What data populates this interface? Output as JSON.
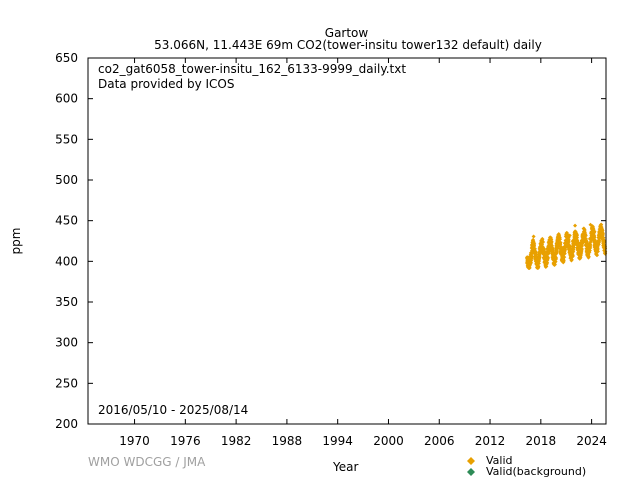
{
  "header": {
    "station": "Gartow",
    "subtitle": "53.066N, 11.443E 69m    CO2(tower-insitu tower132 default) daily"
  },
  "plot_info": {
    "filename": "co2_gat6058_tower-insitu_162_6133-9999_daily.txt",
    "provider": "Data provided by ICOS",
    "date_range": "2016/05/10 - 2025/08/14"
  },
  "credit": "WMO WDCGG / JMA",
  "chart_data": {
    "type": "scatter",
    "xlabel": "Year",
    "ylabel": "ppm",
    "xlim": [
      1964.5,
      2025.7
    ],
    "ylim": [
      200,
      650
    ],
    "xticks": [
      1970,
      1976,
      1982,
      1988,
      1994,
      2000,
      2006,
      2012,
      2018,
      2024
    ],
    "yticks": [
      200,
      250,
      300,
      350,
      400,
      450,
      500,
      550,
      600,
      650
    ],
    "legend_position": "bottom-right",
    "series": [
      {
        "name": "Valid",
        "color": "#e8a000",
        "marker": "diamond",
        "x_range": [
          2016.36,
          2025.62
        ],
        "baseline": {
          "start": 403,
          "trend_ppm_per_year": 2.4
        },
        "seasonal_amplitude": 12,
        "max_value": 472,
        "min_value": 392
      },
      {
        "name": "Valid(background)",
        "color": "#2e8b57",
        "marker": "diamond",
        "points": []
      }
    ]
  }
}
